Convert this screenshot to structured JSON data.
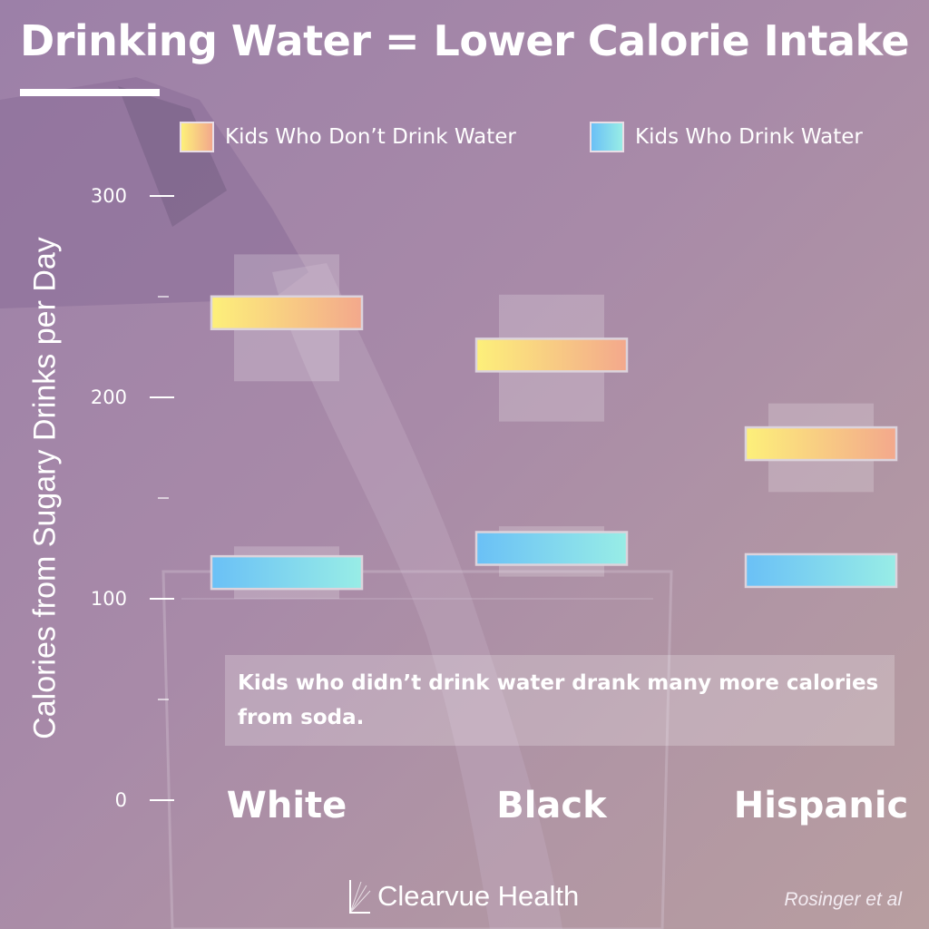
{
  "title": "Drinking Water = Lower Calorie Intake",
  "legend": [
    {
      "label": "Kids Who Don’t Drink Water"
    },
    {
      "label": "Kids Who Drink Water"
    }
  ],
  "annotation": "Kids who didn’t drink water drank many more calories from soda.",
  "brand": "Clearvue Health",
  "source": "Rosinger et al",
  "colors": {
    "no_water_start": "#fdf07a",
    "no_water_end": "#f3a88c",
    "water_start": "#6ac0f6",
    "water_end": "#98ede6",
    "ci_box": "#ffffff"
  },
  "chart_data": {
    "type": "bar",
    "ylabel": "Calories from Sugary Drinks per Day",
    "xlabel": "",
    "ylim": [
      0,
      300
    ],
    "yticks": [
      0,
      100,
      200,
      300
    ],
    "categories": [
      "White",
      "Black",
      "Hispanic"
    ],
    "series": [
      {
        "name": "Kids Who Don’t Drink Water",
        "values": [
          242,
          221,
          177
        ],
        "ci_low": [
          208,
          188,
          153
        ],
        "ci_high": [
          271,
          251,
          197
        ]
      },
      {
        "name": "Kids Who Drink Water",
        "values": [
          113,
          125,
          114
        ],
        "ci_low": [
          100,
          111,
          108
        ],
        "ci_high": [
          126,
          136,
          120
        ]
      }
    ],
    "grid": false,
    "legend_position": "top"
  }
}
